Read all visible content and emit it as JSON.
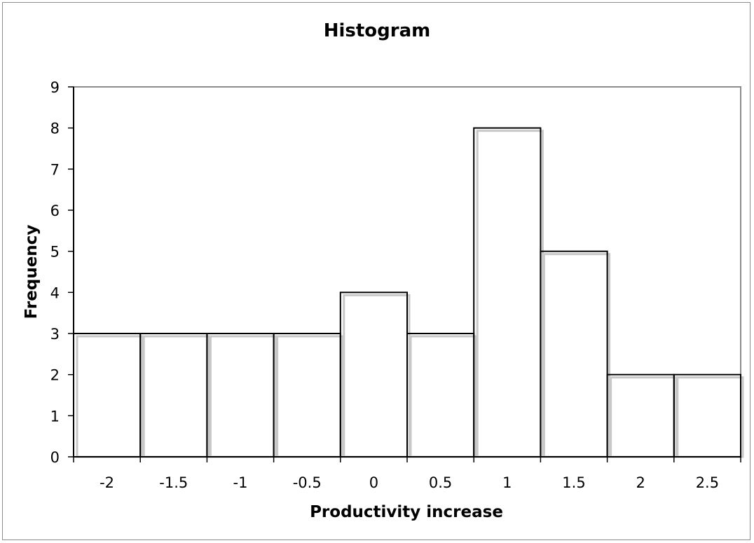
{
  "chart_data": {
    "type": "bar",
    "title": "Histogram",
    "xlabel": "Productivity increase",
    "ylabel": "Frequency",
    "categories": [
      "-2",
      "-1.5",
      "-1",
      "-0.5",
      "0",
      "0.5",
      "1",
      "1.5",
      "2",
      "2.5"
    ],
    "values": [
      3,
      3,
      3,
      3,
      4,
      3,
      8,
      5,
      2,
      2
    ],
    "ylim": [
      0,
      9
    ],
    "yticks": [
      "0",
      "1",
      "2",
      "3",
      "4",
      "5",
      "6",
      "7",
      "8",
      "9"
    ],
    "grid": false,
    "legend": "none",
    "bar_fill": "#ffffff",
    "bar_stroke": "#000000",
    "bar_shadow": "#c8c8c8",
    "plot_border": "#8c8c8c"
  }
}
